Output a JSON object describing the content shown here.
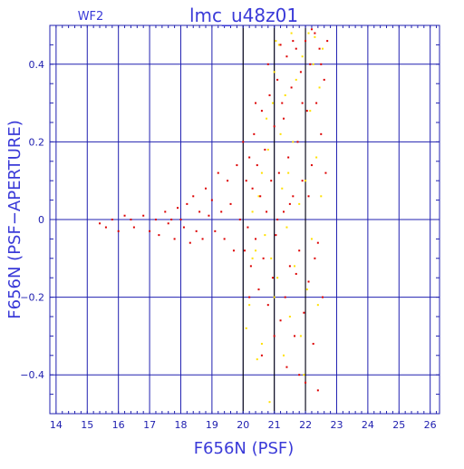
{
  "chart_data": {
    "type": "scatter",
    "title": "lmc_u48z01",
    "corner_label": "WF2",
    "xlabel": "F656N (PSF)",
    "ylabel": "F656N (PSF−APERTURE)",
    "xlim": [
      13.8,
      26.3
    ],
    "ylim": [
      -0.5,
      0.5
    ],
    "x_ticks": [
      14,
      15,
      16,
      17,
      18,
      19,
      20,
      21,
      22,
      23,
      24,
      25,
      26
    ],
    "y_ticks": [
      0.4,
      0.2,
      0,
      -0.2,
      -0.4
    ],
    "y_tick_labels": [
      "0.4",
      "0.2",
      "0",
      "−0.2",
      "−0.4"
    ],
    "grid": true,
    "reference_lines_x": [
      20,
      21,
      22
    ],
    "colors": {
      "axes": "#2020b0",
      "text": "#3a3ad8",
      "reference_line": "#000000",
      "series_red": "#dd0000",
      "series_yellow": "#ffe000"
    },
    "series": [
      {
        "color": "#ffe000",
        "points": [
          [
            20.1,
            -0.28
          ],
          [
            20.2,
            -0.22
          ],
          [
            20.3,
            0.02
          ],
          [
            20.4,
            -0.08
          ],
          [
            20.5,
            0.06
          ],
          [
            20.6,
            0.12
          ],
          [
            20.7,
            -0.04
          ],
          [
            20.8,
            0.18
          ],
          [
            20.9,
            -0.1
          ],
          [
            20.95,
            0.3
          ],
          [
            21.0,
            0.38
          ],
          [
            21.05,
            0.46
          ],
          [
            21.1,
            -0.15
          ],
          [
            21.2,
            0.22
          ],
          [
            21.25,
            0.08
          ],
          [
            21.3,
            -0.35
          ],
          [
            21.35,
            0.32
          ],
          [
            21.4,
            -0.02
          ],
          [
            21.45,
            0.12
          ],
          [
            21.5,
            -0.25
          ],
          [
            21.6,
            0.2
          ],
          [
            21.65,
            -0.12
          ],
          [
            21.7,
            0.36
          ],
          [
            21.8,
            0.04
          ],
          [
            21.85,
            -0.3
          ],
          [
            21.9,
            0.42
          ],
          [
            22.0,
            0.1
          ],
          [
            22.05,
            -0.18
          ],
          [
            22.1,
            0.48
          ],
          [
            22.15,
            0.28
          ],
          [
            22.2,
            -0.05
          ],
          [
            22.25,
            0.4
          ],
          [
            22.3,
            0.47
          ],
          [
            22.35,
            0.16
          ],
          [
            22.4,
            -0.22
          ],
          [
            22.45,
            0.34
          ],
          [
            22.5,
            0.06
          ],
          [
            22.55,
            0.44
          ],
          [
            20.6,
            -0.32
          ],
          [
            21.0,
            -0.2
          ],
          [
            20.3,
            -0.1
          ],
          [
            20.75,
            0.26
          ],
          [
            21.15,
            0.45
          ],
          [
            21.55,
            0.48
          ],
          [
            21.95,
            -0.4
          ],
          [
            20.85,
            -0.47
          ],
          [
            20.45,
            -0.36
          ]
        ]
      },
      {
        "color": "#dd0000",
        "points": [
          [
            15.4,
            -0.01
          ],
          [
            15.6,
            -0.02
          ],
          [
            15.8,
            0.0
          ],
          [
            16.0,
            -0.03
          ],
          [
            16.2,
            0.01
          ],
          [
            16.4,
            0.0
          ],
          [
            16.5,
            -0.02
          ],
          [
            16.8,
            0.01
          ],
          [
            17.0,
            -0.03
          ],
          [
            17.2,
            0.0
          ],
          [
            17.3,
            -0.04
          ],
          [
            17.5,
            0.02
          ],
          [
            17.6,
            -0.01
          ],
          [
            17.7,
            0.0
          ],
          [
            17.8,
            -0.05
          ],
          [
            17.9,
            0.03
          ],
          [
            18.0,
            0.0
          ],
          [
            18.1,
            -0.02
          ],
          [
            18.2,
            0.04
          ],
          [
            18.3,
            -0.06
          ],
          [
            18.4,
            0.06
          ],
          [
            18.5,
            -0.03
          ],
          [
            18.6,
            0.02
          ],
          [
            18.7,
            -0.05
          ],
          [
            18.8,
            0.08
          ],
          [
            18.9,
            0.01
          ],
          [
            19.0,
            0.05
          ],
          [
            19.1,
            -0.03
          ],
          [
            19.2,
            0.12
          ],
          [
            19.3,
            0.02
          ],
          [
            19.4,
            -0.05
          ],
          [
            19.5,
            0.1
          ],
          [
            19.6,
            0.04
          ],
          [
            19.7,
            -0.08
          ],
          [
            19.8,
            0.14
          ],
          [
            19.9,
            0.0
          ],
          [
            20.0,
            0.2
          ],
          [
            20.05,
            -0.08
          ],
          [
            20.1,
            0.1
          ],
          [
            20.15,
            -0.02
          ],
          [
            20.2,
            0.16
          ],
          [
            20.25,
            -0.12
          ],
          [
            20.3,
            0.08
          ],
          [
            20.35,
            0.22
          ],
          [
            20.4,
            -0.05
          ],
          [
            20.45,
            0.14
          ],
          [
            20.5,
            -0.18
          ],
          [
            20.55,
            0.06
          ],
          [
            20.6,
            0.28
          ],
          [
            20.65,
            -0.1
          ],
          [
            20.7,
            0.18
          ],
          [
            20.75,
            0.02
          ],
          [
            20.8,
            -0.22
          ],
          [
            20.85,
            0.32
          ],
          [
            20.9,
            0.1
          ],
          [
            20.95,
            -0.15
          ],
          [
            21.0,
            0.24
          ],
          [
            21.05,
            -0.04
          ],
          [
            21.1,
            0.36
          ],
          [
            21.15,
            0.12
          ],
          [
            21.2,
            -0.26
          ],
          [
            21.25,
            0.3
          ],
          [
            21.3,
            0.02
          ],
          [
            21.35,
            -0.2
          ],
          [
            21.4,
            0.42
          ],
          [
            21.45,
            0.16
          ],
          [
            21.5,
            -0.12
          ],
          [
            21.55,
            0.34
          ],
          [
            21.6,
            0.06
          ],
          [
            21.65,
            -0.3
          ],
          [
            21.7,
            0.44
          ],
          [
            21.75,
            0.2
          ],
          [
            21.8,
            -0.08
          ],
          [
            21.85,
            0.38
          ],
          [
            21.9,
            0.1
          ],
          [
            21.95,
            -0.24
          ],
          [
            22.0,
            0.46
          ],
          [
            22.05,
            0.28
          ],
          [
            22.1,
            -0.16
          ],
          [
            22.15,
            0.4
          ],
          [
            22.2,
            0.14
          ],
          [
            22.25,
            -0.32
          ],
          [
            22.3,
            0.48
          ],
          [
            22.35,
            0.3
          ],
          [
            22.4,
            -0.06
          ],
          [
            22.45,
            0.44
          ],
          [
            22.5,
            0.22
          ],
          [
            22.55,
            -0.2
          ],
          [
            22.6,
            0.36
          ],
          [
            22.65,
            0.12
          ],
          [
            22.7,
            0.46
          ],
          [
            20.2,
            -0.2
          ],
          [
            20.4,
            0.3
          ],
          [
            20.6,
            -0.35
          ],
          [
            20.8,
            0.4
          ],
          [
            21.0,
            -0.3
          ],
          [
            21.2,
            0.45
          ],
          [
            21.4,
            -0.38
          ],
          [
            21.6,
            0.46
          ],
          [
            21.8,
            -0.4
          ],
          [
            22.0,
            -0.42
          ],
          [
            22.2,
            0.49
          ],
          [
            22.4,
            -0.44
          ],
          [
            21.1,
            0.0
          ],
          [
            21.3,
            0.26
          ],
          [
            21.5,
            0.04
          ],
          [
            21.7,
            -0.14
          ],
          [
            21.9,
            0.3
          ],
          [
            22.1,
            0.06
          ],
          [
            22.3,
            -0.1
          ],
          [
            22.5,
            0.4
          ]
        ]
      }
    ]
  }
}
